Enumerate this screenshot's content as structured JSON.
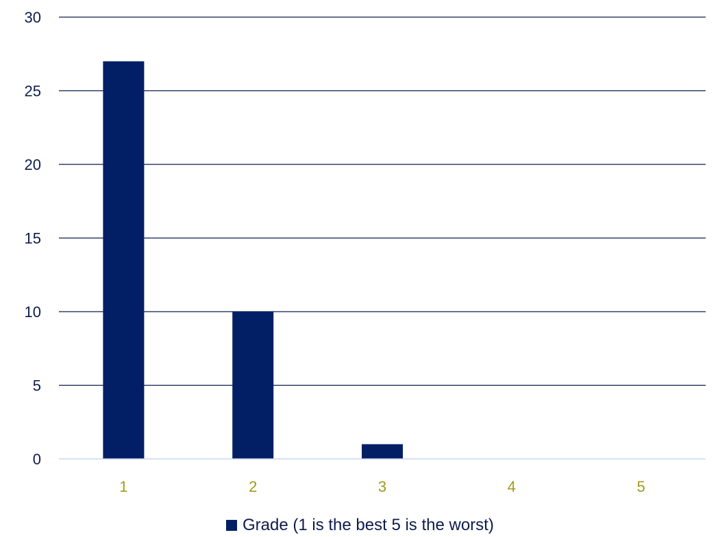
{
  "chart_data": {
    "type": "bar",
    "categories": [
      "1",
      "2",
      "3",
      "4",
      "5"
    ],
    "series": [
      {
        "name": "Grade (1 is the best 5 is the worst)",
        "values": [
          27,
          10,
          1,
          0,
          0
        ]
      }
    ],
    "title": "",
    "xlabel": "",
    "ylabel": "",
    "ylim": [
      0,
      30
    ],
    "yticks": [
      "0",
      "5",
      "10",
      "15",
      "20",
      "25",
      "30"
    ],
    "grid": true,
    "legend_position": "bottom"
  },
  "colors": {
    "bar": "#021f66",
    "gridline": "#0e1b4d",
    "baseline": "#c9d7f0",
    "ytick_text": "#0e1b4d",
    "xtick_text": "#a39a1a"
  }
}
